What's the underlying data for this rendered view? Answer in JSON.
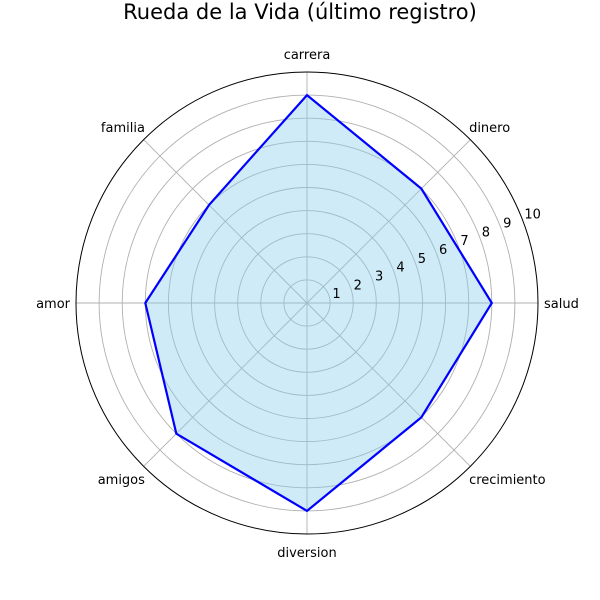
{
  "chart_data": {
    "type": "radar",
    "title": "Rueda de la Vida (último registro)",
    "categories": [
      "salud",
      "dinero",
      "carrera",
      "familia",
      "amor",
      "amigos",
      "diversion",
      "crecimiento"
    ],
    "series": [
      {
        "values": [
          8,
          7,
          9,
          6,
          7,
          8,
          9,
          7
        ]
      }
    ],
    "rlim": [
      0,
      10
    ],
    "rticks": [
      "1",
      "2",
      "3",
      "4",
      "5",
      "6",
      "7",
      "8",
      "9",
      "10"
    ],
    "grid": true,
    "colors": {
      "line": "#0000ff",
      "fill": "#87ceeb",
      "grid": "#b0b0b0",
      "frame": "#000000"
    }
  }
}
